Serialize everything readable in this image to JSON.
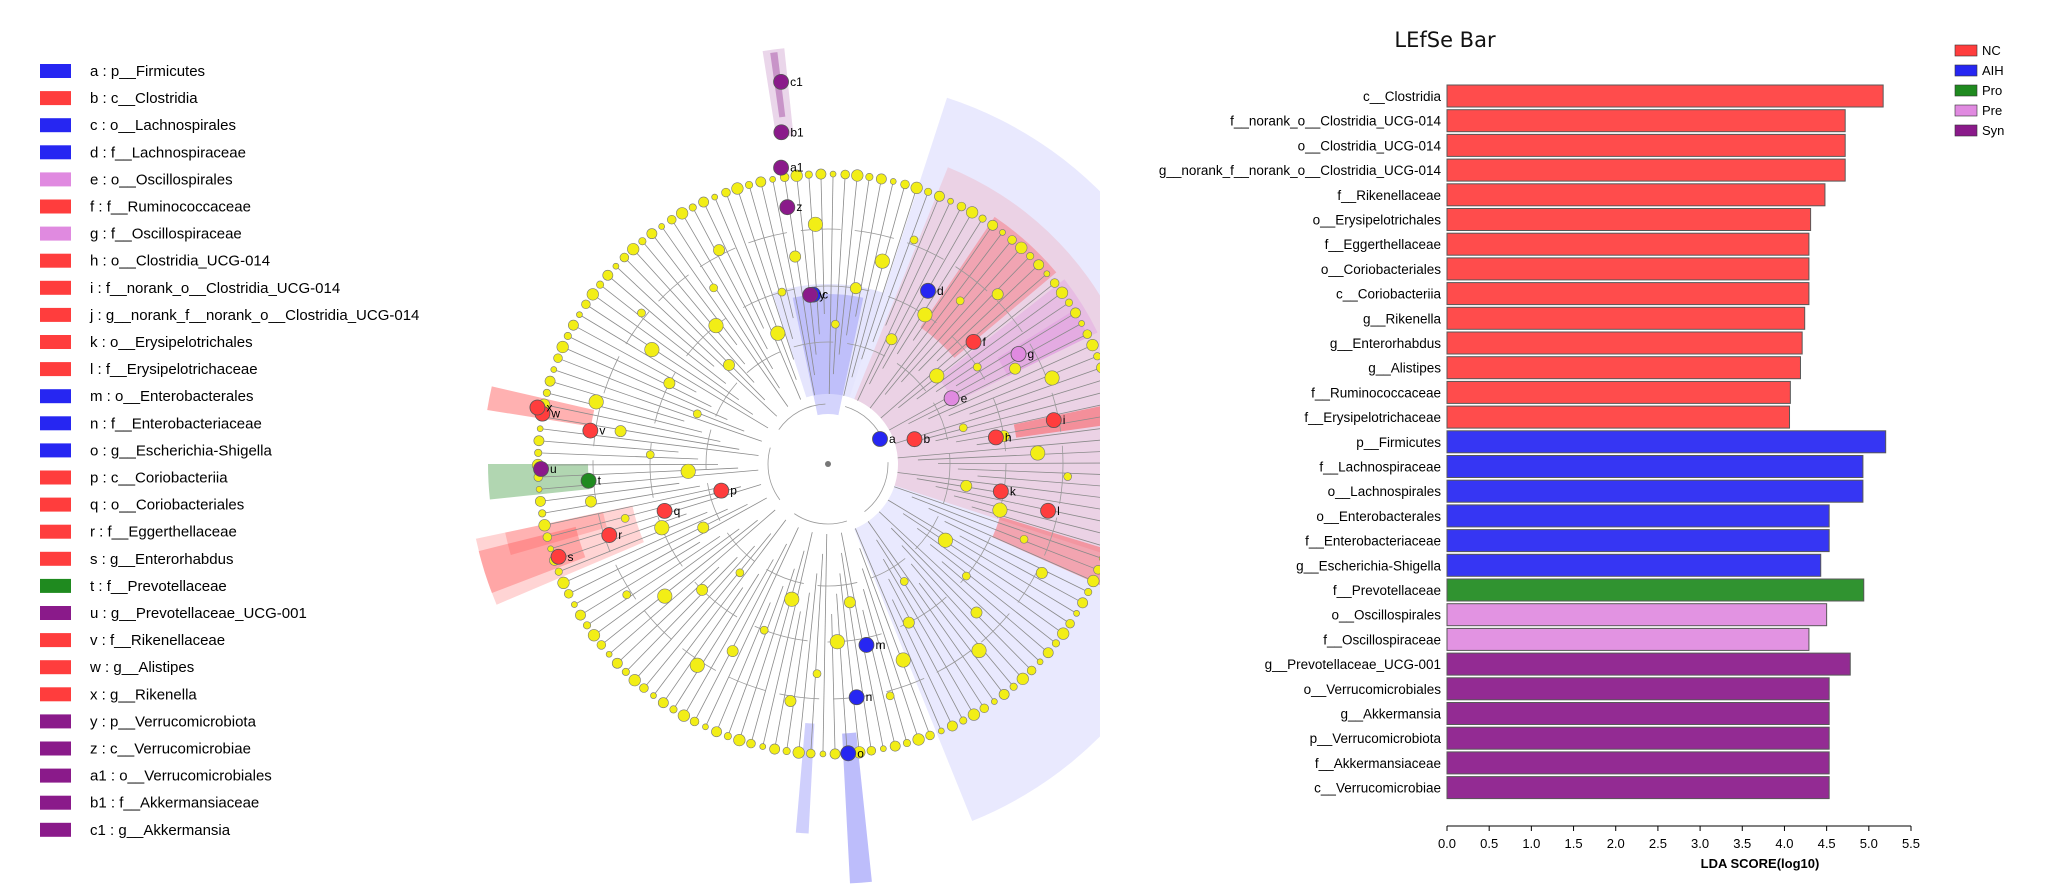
{
  "colors": {
    "NC": "#ff3d3d",
    "AIH": "#2626f2",
    "Pro": "#1f8a1f",
    "Pre": "#e08ae0",
    "Syn": "#8a1a8a",
    "node": "#f2ee16"
  },
  "cladogram": {
    "legend": [
      {
        "key": "a",
        "text": "p__Firmicutes",
        "group": "AIH"
      },
      {
        "key": "b",
        "text": "c__Clostridia",
        "group": "NC"
      },
      {
        "key": "c",
        "text": "o__Lachnospirales",
        "group": "AIH"
      },
      {
        "key": "d",
        "text": "f__Lachnospiraceae",
        "group": "AIH"
      },
      {
        "key": "e",
        "text": "o__Oscillospirales",
        "group": "Pre"
      },
      {
        "key": "f",
        "text": "f__Ruminococcaceae",
        "group": "NC"
      },
      {
        "key": "g",
        "text": "f__Oscillospiraceae",
        "group": "Pre"
      },
      {
        "key": "h",
        "text": "o__Clostridia_UCG-014",
        "group": "NC"
      },
      {
        "key": "i",
        "text": "f__norank_o__Clostridia_UCG-014",
        "group": "NC"
      },
      {
        "key": "j",
        "text": "g__norank_f__norank_o__Clostridia_UCG-014",
        "group": "NC"
      },
      {
        "key": "k",
        "text": "o__Erysipelotrichales",
        "group": "NC"
      },
      {
        "key": "l",
        "text": "f__Erysipelotrichaceae",
        "group": "NC"
      },
      {
        "key": "m",
        "text": "o__Enterobacterales",
        "group": "AIH"
      },
      {
        "key": "n",
        "text": "f__Enterobacteriaceae",
        "group": "AIH"
      },
      {
        "key": "o",
        "text": "g__Escherichia-Shigella",
        "group": "AIH"
      },
      {
        "key": "p",
        "text": "c__Coriobacteriia",
        "group": "NC"
      },
      {
        "key": "q",
        "text": "o__Coriobacteriales",
        "group": "NC"
      },
      {
        "key": "r",
        "text": "f__Eggerthellaceae",
        "group": "NC"
      },
      {
        "key": "s",
        "text": "g__Enterorhabdus",
        "group": "NC"
      },
      {
        "key": "t",
        "text": "f__Prevotellaceae",
        "group": "Pro"
      },
      {
        "key": "u",
        "text": "g__Prevotellaceae_UCG-001",
        "group": "Syn"
      },
      {
        "key": "v",
        "text": "f__Rikenellaceae",
        "group": "NC"
      },
      {
        "key": "w",
        "text": "g__Alistipes",
        "group": "NC"
      },
      {
        "key": "x",
        "text": "g__Rikenella",
        "group": "NC"
      },
      {
        "key": "y",
        "text": "p__Verrucomicrobiota",
        "group": "Syn"
      },
      {
        "key": "z",
        "text": "c__Verrucomicrobiae",
        "group": "Syn"
      },
      {
        "key": "a1",
        "text": "o__Verrucomicrobiales",
        "group": "Syn"
      },
      {
        "key": "b1",
        "text": "f__Akkermansiaceae",
        "group": "Syn"
      },
      {
        "key": "c1",
        "text": "g__Akkermansia",
        "group": "Syn"
      }
    ]
  },
  "chart_data": {
    "type": "bar",
    "orientation": "horizontal",
    "title": "LEfSe Bar",
    "xlabel": "LDA SCORE(log10)",
    "ylabel": "",
    "xlim": [
      0,
      5.5
    ],
    "xticks": [
      "0.0",
      "0.5",
      "1.0",
      "1.5",
      "2.0",
      "2.5",
      "3.0",
      "3.5",
      "4.0",
      "4.5",
      "5.0",
      "5.5"
    ],
    "legend_position": "top-right",
    "legend": [
      "NC",
      "AIH",
      "Pro",
      "Pre",
      "Syn"
    ],
    "categories": [
      "c__Clostridia",
      "f__norank_o__Clostridia_UCG-014",
      "o__Clostridia_UCG-014",
      "g__norank_f__norank_o__Clostridia_UCG-014",
      "f__Rikenellaceae",
      "o__Erysipelotrichales",
      "f__Eggerthellaceae",
      "o__Coriobacteriales",
      "c__Coriobacteriia",
      "g__Rikenella",
      "g__Enterorhabdus",
      "g__Alistipes",
      "f__Ruminococcaceae",
      "f__Erysipelotrichaceae",
      "p__Firmicutes",
      "f__Lachnospiraceae",
      "o__Lachnospirales",
      "o__Enterobacterales",
      "f__Enterobacteriaceae",
      "g__Escherichia-Shigella",
      "f__Prevotellaceae",
      "o__Oscillospirales",
      "f__Oscillospiraceae",
      "g__Prevotellaceae_UCG-001",
      "o__Verrucomicrobiales",
      "g__Akkermansia",
      "p__Verrucomicrobiota",
      "f__Akkermansiaceae",
      "c__Verrucomicrobiae"
    ],
    "values": [
      5.17,
      4.72,
      4.72,
      4.72,
      4.48,
      4.31,
      4.29,
      4.29,
      4.29,
      4.24,
      4.21,
      4.19,
      4.07,
      4.06,
      5.2,
      4.93,
      4.93,
      4.53,
      4.53,
      4.43,
      4.94,
      4.5,
      4.29,
      4.78,
      4.53,
      4.53,
      4.53,
      4.53,
      4.53
    ],
    "groups": [
      "NC",
      "NC",
      "NC",
      "NC",
      "NC",
      "NC",
      "NC",
      "NC",
      "NC",
      "NC",
      "NC",
      "NC",
      "NC",
      "NC",
      "AIH",
      "AIH",
      "AIH",
      "AIH",
      "AIH",
      "AIH",
      "Pro",
      "Pre",
      "Pre",
      "Syn",
      "Syn",
      "Syn",
      "Syn",
      "Syn",
      "Syn"
    ]
  }
}
